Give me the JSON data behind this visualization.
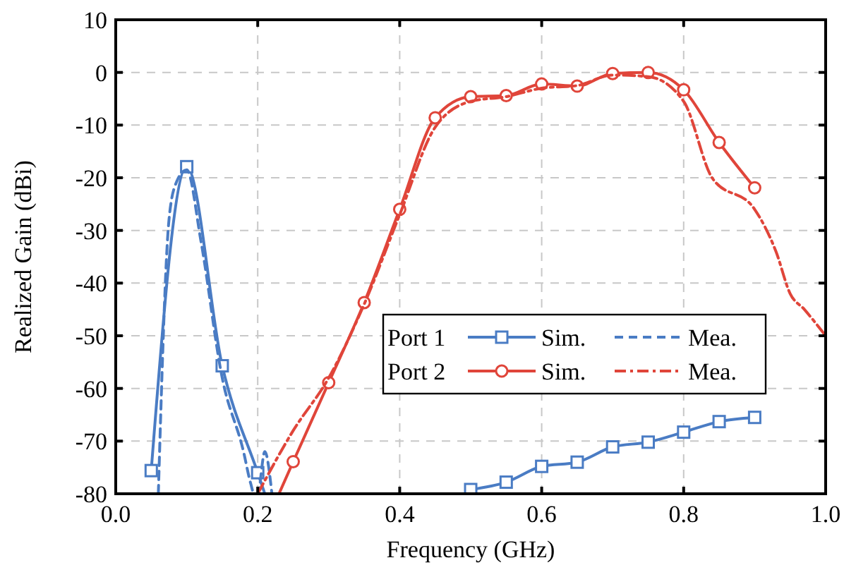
{
  "chart_data": {
    "type": "line",
    "xlabel": "Frequency (GHz)",
    "ylabel": "Realized Gain (dBi)",
    "xlim": [
      0,
      1
    ],
    "xticks": [
      {
        "value": 0,
        "label": "0.0"
      },
      0.2,
      0.4,
      0.6,
      0.8,
      {
        "value": 1,
        "label": "1.0"
      }
    ],
    "ylim": [
      -80,
      10
    ],
    "yticks": [
      -80,
      -70,
      -60,
      -50,
      -40,
      -30,
      -20,
      -10,
      0,
      10
    ],
    "grid": true,
    "legend": "center",
    "annotations": [
      "Port 1",
      "Port 2"
    ],
    "series": [
      {
        "name": "Sim.",
        "color": "#4a7cc4",
        "marker": "square",
        "line_style": "solid",
        "x": [
          0.05,
          0.1,
          0.15,
          0.2,
          0.21,
          0.3,
          0.5,
          0.55,
          0.6,
          0.65,
          0.7,
          0.75,
          0.8,
          0.85,
          0.9
        ],
        "values": [
          -75.6,
          -17.9,
          -55.7,
          -76,
          -80,
          null,
          -79.2,
          -77.8,
          -74.8,
          -74,
          -71.1,
          -70.2,
          -68.3,
          -66.3,
          -65.5
        ]
      },
      {
        "name": "Mea.",
        "color": "#4a7cc4",
        "marker": "none",
        "line_style": "dashed",
        "x": [
          0.06,
          0.075,
          0.085,
          0.1,
          0.12,
          0.15,
          0.18,
          0.19,
          0.195,
          0.2,
          0.21,
          0.22
        ],
        "values": [
          -80,
          -28,
          -21,
          -18.5,
          -32,
          -58,
          -72,
          -78,
          -80,
          -80,
          -72,
          -80
        ]
      },
      {
        "name": "Sim.",
        "color": "#e0453a",
        "marker": "circle",
        "line_style": "solid",
        "x": [
          0.23,
          0.25,
          0.3,
          0.35,
          0.4,
          0.45,
          0.5,
          0.55,
          0.6,
          0.65,
          0.7,
          0.75,
          0.8,
          0.85,
          0.9
        ],
        "values": [
          -80,
          -73.9,
          -58.9,
          -43.7,
          -26,
          -8.6,
          -4.6,
          -4.4,
          -2.2,
          -2.6,
          -0.2,
          0,
          -3.3,
          -13.3,
          -21.9
        ]
      },
      {
        "name": "Mea.",
        "color": "#e0453a",
        "marker": "none",
        "line_style": "dashdot",
        "x": [
          0.2,
          0.25,
          0.3,
          0.35,
          0.4,
          0.45,
          0.5,
          0.55,
          0.6,
          0.65,
          0.7,
          0.75,
          0.8,
          0.84,
          0.9,
          0.93,
          0.95,
          0.97,
          1.0
        ],
        "values": [
          -80,
          -68,
          -58,
          -44,
          -27,
          -10.4,
          -5.5,
          -4.6,
          -3,
          -2.5,
          -0.5,
          -0.8,
          -5.5,
          -20,
          -26,
          -34,
          -42,
          -45,
          -50
        ]
      }
    ]
  }
}
